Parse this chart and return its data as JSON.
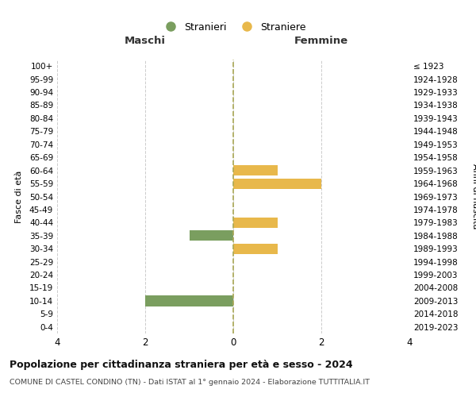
{
  "age_groups": [
    "100+",
    "95-99",
    "90-94",
    "85-89",
    "80-84",
    "75-79",
    "70-74",
    "65-69",
    "60-64",
    "55-59",
    "50-54",
    "45-49",
    "40-44",
    "35-39",
    "30-34",
    "25-29",
    "20-24",
    "15-19",
    "10-14",
    "5-9",
    "0-4"
  ],
  "birth_years": [
    "≤ 1923",
    "1924-1928",
    "1929-1933",
    "1934-1938",
    "1939-1943",
    "1944-1948",
    "1949-1953",
    "1954-1958",
    "1959-1963",
    "1964-1968",
    "1969-1973",
    "1974-1978",
    "1979-1983",
    "1984-1988",
    "1989-1993",
    "1994-1998",
    "1999-2003",
    "2004-2008",
    "2009-2013",
    "2014-2018",
    "2019-2023"
  ],
  "maschi": [
    0,
    0,
    0,
    0,
    0,
    0,
    0,
    0,
    0,
    0,
    0,
    0,
    0,
    -1,
    0,
    0,
    0,
    0,
    -2,
    0,
    0
  ],
  "femmine": [
    0,
    0,
    0,
    0,
    0,
    0,
    0,
    0,
    1,
    2,
    0,
    0,
    1,
    0,
    1,
    0,
    0,
    0,
    0,
    0,
    0
  ],
  "color_maschi": "#7a9e5f",
  "color_femmine": "#e8b84b",
  "xlabel_left": "Maschi",
  "xlabel_right": "Femmine",
  "ylabel_left": "Fasce di età",
  "ylabel_right": "Anni di nascita",
  "xlim": [
    -4,
    4
  ],
  "xticks": [
    -4,
    -2,
    0,
    2,
    4
  ],
  "xticklabels": [
    "4",
    "2",
    "0",
    "2",
    "4"
  ],
  "legend_stranieri": "Stranieri",
  "legend_straniere": "Straniere",
  "title": "Popolazione per cittadinanza straniera per età e sesso - 2024",
  "subtitle": "COMUNE DI CASTEL CONDINO (TN) - Dati ISTAT al 1° gennaio 2024 - Elaborazione TUTTITALIA.IT",
  "bg_color": "#ffffff",
  "grid_color": "#cccccc",
  "bar_height": 0.8
}
